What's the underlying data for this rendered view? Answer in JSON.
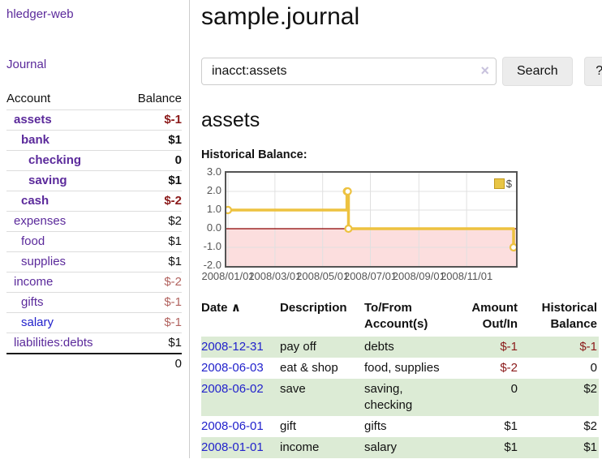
{
  "colors": {
    "link_purple": "#5b2a9b",
    "link_blue": "#2222cc",
    "negative_strong": "#8b1a1a",
    "negative_muted": "#b2635f",
    "stripe_green": "#dcebd5",
    "button_bg": "#ececec"
  },
  "sidebar": {
    "app_title": "hledger-web",
    "nav_journal": "Journal",
    "accounts_header": {
      "account": "Account",
      "balance": "Balance"
    },
    "accounts": [
      {
        "name": "assets",
        "depth": 1,
        "bold": true,
        "balance": "$-1",
        "balance_style": "neg-strong",
        "link_style": "purple"
      },
      {
        "name": "bank",
        "depth": 2,
        "bold": true,
        "balance": "$1",
        "balance_style": "pos",
        "link_style": "purple"
      },
      {
        "name": "checking",
        "depth": 3,
        "bold": true,
        "balance": "0",
        "balance_style": "pos",
        "link_style": "purple"
      },
      {
        "name": "saving",
        "depth": 3,
        "bold": true,
        "balance": "$1",
        "balance_style": "pos",
        "link_style": "purple"
      },
      {
        "name": "cash",
        "depth": 2,
        "bold": true,
        "balance": "$-2",
        "balance_style": "neg-strong",
        "link_style": "purple"
      },
      {
        "name": "expenses",
        "depth": 1,
        "bold": false,
        "balance": "$2",
        "balance_style": "pos",
        "link_style": "purple"
      },
      {
        "name": "food",
        "depth": 2,
        "bold": false,
        "balance": "$1",
        "balance_style": "pos",
        "link_style": "purple"
      },
      {
        "name": "supplies",
        "depth": 2,
        "bold": false,
        "balance": "$1",
        "balance_style": "pos",
        "link_style": "purple"
      },
      {
        "name": "income",
        "depth": 1,
        "bold": false,
        "balance": "$-2",
        "balance_style": "neg-muted",
        "link_style": "purple"
      },
      {
        "name": "gifts",
        "depth": 2,
        "bold": false,
        "balance": "$-1",
        "balance_style": "neg-muted",
        "link_style": "purple"
      },
      {
        "name": "salary",
        "depth": 2,
        "bold": false,
        "balance": "$-1",
        "balance_style": "neg-muted",
        "link_style": "blue"
      },
      {
        "name": "liabilities:debts",
        "depth": 1,
        "bold": false,
        "balance": "$1",
        "balance_style": "pos",
        "link_style": "purple"
      }
    ],
    "total": "0"
  },
  "main": {
    "title": "sample.journal",
    "search": {
      "value": "inacct:assets",
      "clear_icon": "×",
      "button_label": "Search",
      "help_label": "?"
    },
    "account_heading": "assets"
  },
  "chart_data": {
    "type": "line",
    "step": true,
    "title": "Historical Balance:",
    "legend": [
      {
        "label": "$",
        "color": "#e8c545"
      }
    ],
    "x": [
      "2008-01-01",
      "2008-06-01",
      "2008-06-02",
      "2008-06-03",
      "2008-12-31"
    ],
    "values": [
      1,
      2,
      2,
      0,
      -1
    ],
    "ylim": [
      -2,
      3
    ],
    "yticks": [
      3.0,
      2.0,
      1.0,
      0.0,
      -1.0,
      -2.0
    ],
    "ytick_labels": [
      "3.0",
      "2.0",
      "1.0",
      "0.0",
      "-1.0",
      "-2.0"
    ],
    "xtick_labels": [
      "2008/01/01",
      "2008/03/01",
      "2008/05/01",
      "2008/07/01",
      "2008/09/01",
      "2008/11/01"
    ],
    "grid": true,
    "line_color": "#edc240",
    "marker_fill": "#ffffff",
    "negative_region_fill": "#fcdede",
    "zero_line_color": "#8b0000",
    "grid_color": "#e0e0e0",
    "legend_position": "top-right"
  },
  "register": {
    "headers": {
      "date": "Date",
      "sort_icon": "∧",
      "description": "Description",
      "tofrom": "To/From\nAccount(s)",
      "amount": "Amount\nOut/In",
      "balance": "Historical\nBalance"
    },
    "rows": [
      {
        "date": "2008-12-31",
        "description": "pay off",
        "accounts": "debts",
        "amount": "$-1",
        "amount_style": "neg",
        "balance": "$-1",
        "balance_style": "neg",
        "striped": true
      },
      {
        "date": "2008-06-03",
        "description": "eat & shop",
        "accounts": "food, supplies",
        "amount": "$-2",
        "amount_style": "neg",
        "balance": "0",
        "balance_style": "pos",
        "striped": false
      },
      {
        "date": "2008-06-02",
        "description": "save",
        "accounts": "saving,\nchecking",
        "amount": "0",
        "amount_style": "pos",
        "balance": "$2",
        "balance_style": "pos",
        "striped": true
      },
      {
        "date": "2008-06-01",
        "description": "gift",
        "accounts": "gifts",
        "amount": "$1",
        "amount_style": "pos",
        "balance": "$2",
        "balance_style": "pos",
        "striped": false
      },
      {
        "date": "2008-01-01",
        "description": "income",
        "accounts": "salary",
        "amount": "$1",
        "amount_style": "pos",
        "balance": "$1",
        "balance_style": "pos",
        "striped": true
      }
    ]
  }
}
